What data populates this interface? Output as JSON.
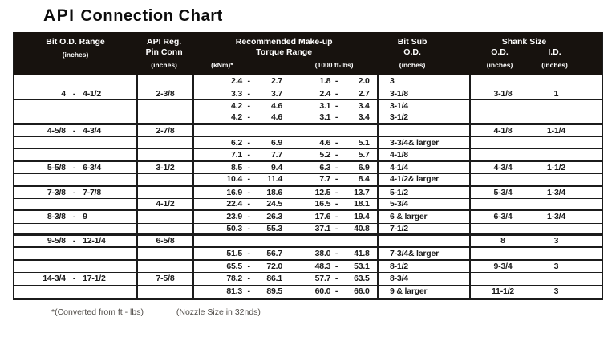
{
  "title": {
    "word1": "API",
    "word2": "Connection Chart"
  },
  "header": {
    "bit_od": {
      "l1": "Bit O.D. Range",
      "l2": "(inches)"
    },
    "pin": {
      "l1": "API Reg.",
      "l2": "Pin Conn",
      "l3": "(inches)"
    },
    "torque": {
      "l1": "Recommended Make-up",
      "l2": "Torque Range",
      "knm": "(kNm)*",
      "ftlbs": "(1000 ft-lbs)"
    },
    "bit_sub": {
      "l1": "Bit Sub",
      "l2": "O.D.",
      "l3": "(inches)"
    },
    "shank": {
      "l1": "Shank Size",
      "od": "O.D.",
      "id": "I.D.",
      "od_unit": "(inches)",
      "id_unit": "(inches)"
    }
  },
  "chart_data": {
    "type": "table",
    "separator": "-",
    "columns": [
      "Bit O.D. Range (inches)",
      "API Reg. Pin Conn (inches)",
      "Make-up Torque (kNm)",
      "Make-up Torque (1000 ft-lbs)",
      "Bit Sub O.D. (inches)",
      "Shank O.D. (inches)",
      "Shank I.D. (inches)"
    ],
    "rows": [
      {
        "od": [
          "",
          ""
        ],
        "pin": "",
        "knm": [
          "2.4",
          "2.7"
        ],
        "ft": [
          "1.8",
          "2.0"
        ],
        "sub": "3",
        "sod": "",
        "sid": "",
        "border": ""
      },
      {
        "od": [
          "4",
          "4-1/2"
        ],
        "pin": "2-3/8",
        "knm": [
          "3.3",
          "3.7"
        ],
        "ft": [
          "2.4",
          "2.7"
        ],
        "sub": "3-1/8",
        "sod": "3-1/8",
        "sid": "1",
        "border": ""
      },
      {
        "od": [
          "",
          ""
        ],
        "pin": "",
        "knm": [
          "4.2",
          "4.6"
        ],
        "ft": [
          "3.1",
          "3.4"
        ],
        "sub": "3-1/4",
        "sod": "",
        "sid": "",
        "border": ""
      },
      {
        "od": [
          "",
          ""
        ],
        "pin": "",
        "knm": [
          "4.2",
          "4.6"
        ],
        "ft": [
          "3.1",
          "3.4"
        ],
        "sub": "3-1/2",
        "sod": "",
        "sid": "",
        "border": "thick"
      },
      {
        "od": [
          "4-5/8",
          "4-3/4"
        ],
        "pin": "2-7/8",
        "knm": [
          "",
          ""
        ],
        "ft": [
          "",
          ""
        ],
        "sub": "",
        "sod": "4-1/8",
        "sid": "1-1/4",
        "border": ""
      },
      {
        "od": [
          "",
          ""
        ],
        "pin": "",
        "knm": [
          "6.2",
          "6.9"
        ],
        "ft": [
          "4.6",
          "5.1"
        ],
        "sub": "3-3/4& larger",
        "sod": "",
        "sid": "",
        "border": ""
      },
      {
        "od": [
          "",
          ""
        ],
        "pin": "",
        "knm": [
          "7.1",
          "7.7"
        ],
        "ft": [
          "5.2",
          "5.7"
        ],
        "sub": "4-1/8",
        "sod": "",
        "sid": "",
        "border": "thick"
      },
      {
        "od": [
          "5-5/8",
          "6-3/4"
        ],
        "pin": "3-1/2",
        "knm": [
          "8.5",
          "9.4"
        ],
        "ft": [
          "6.3",
          "6.9"
        ],
        "sub": "4-1/4",
        "sod": "4-3/4",
        "sid": "1-1/2",
        "border": ""
      },
      {
        "od": [
          "",
          ""
        ],
        "pin": "",
        "knm": [
          "10.4",
          "11.4"
        ],
        "ft": [
          "7.7",
          "8.4"
        ],
        "sub": "4-1/2& larger",
        "sod": "",
        "sid": "",
        "border": "thick"
      },
      {
        "od": [
          "7-3/8",
          "7-7/8"
        ],
        "pin": "",
        "knm": [
          "16.9",
          "18.6"
        ],
        "ft": [
          "12.5",
          "13.7"
        ],
        "sub": "5-1/2",
        "sod": "5-3/4",
        "sid": "1-3/4",
        "border": ""
      },
      {
        "od": [
          "",
          ""
        ],
        "pin": "4-1/2",
        "knm": [
          "22.4",
          "24.5"
        ],
        "ft": [
          "16.5",
          "18.1"
        ],
        "sub": "5-3/4",
        "sod": "",
        "sid": "",
        "border": "thick"
      },
      {
        "od": [
          "8-3/8",
          "9"
        ],
        "pin": "",
        "knm": [
          "23.9",
          "26.3"
        ],
        "ft": [
          "17.6",
          "19.4"
        ],
        "sub": "6 & larger",
        "sod": "6-3/4",
        "sid": "1-3/4",
        "border": ""
      },
      {
        "od": [
          "",
          ""
        ],
        "pin": "",
        "knm": [
          "50.3",
          "55.3"
        ],
        "ft": [
          "37.1",
          "40.8"
        ],
        "sub": "7-1/2",
        "sod": "",
        "sid": "",
        "border": "thick"
      },
      {
        "od": [
          "9-5/8",
          "12-1/4"
        ],
        "pin": "6-5/8",
        "knm": [
          "",
          ""
        ],
        "ft": [
          "",
          ""
        ],
        "sub": "",
        "sod": "8",
        "sid": "3",
        "border": "thick"
      },
      {
        "od": [
          "",
          ""
        ],
        "pin": "",
        "knm": [
          "51.5",
          "56.7"
        ],
        "ft": [
          "38.0",
          "41.8"
        ],
        "sub": "7-3/4& larger",
        "sod": "",
        "sid": "",
        "border": "med"
      },
      {
        "od": [
          "",
          ""
        ],
        "pin": "",
        "knm": [
          "65.5",
          "72.0"
        ],
        "ft": [
          "48.3",
          "53.1"
        ],
        "sub": "8-1/2",
        "sod": "9-3/4",
        "sid": "3",
        "border": ""
      },
      {
        "od": [
          "14-3/4",
          "17-1/2"
        ],
        "pin": "7-5/8",
        "knm": [
          "78.2",
          "86.1"
        ],
        "ft": [
          "57.7",
          "63.5"
        ],
        "sub": "8-3/4",
        "sod": "",
        "sid": "",
        "border": ""
      },
      {
        "od": [
          "",
          ""
        ],
        "pin": "",
        "knm": [
          "81.3",
          "89.5"
        ],
        "ft": [
          "60.0",
          "66.0"
        ],
        "sub": "9 & larger",
        "sod": "11-1/2",
        "sid": "3",
        "border": ""
      }
    ]
  },
  "footnotes": {
    "converted": "*(Converted from ft - lbs)",
    "nozzle": "(Nozzle Size in 32nds)"
  },
  "colors": {
    "header_bg": "#17120e",
    "border": "#1b1b1b",
    "text": "#1b1b1b",
    "footnote": "#4f4b47"
  }
}
